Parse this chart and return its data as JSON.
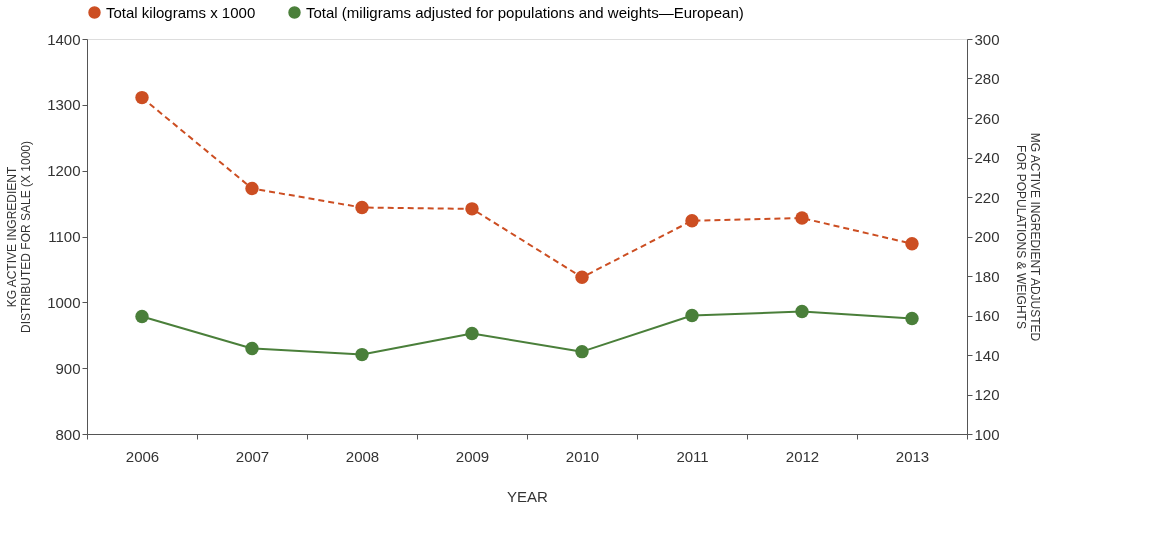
{
  "chart_data": {
    "type": "line",
    "categories": [
      "2006",
      "2007",
      "2008",
      "2009",
      "2010",
      "2011",
      "2012",
      "2013"
    ],
    "series": [
      {
        "name": "Total kilograms x 1000",
        "color": "#cc4e22",
        "line_style": "dashed",
        "values": [
          1311,
          1173,
          1144,
          1142,
          1038,
          1124,
          1128,
          1089
        ]
      },
      {
        "name": "Total (miligrams adjusted for populations and weights—European)",
        "color": "#4a7f3a",
        "line_style": "solid",
        "axis": "y2",
        "values": [
          159.5,
          143.3,
          140.2,
          150.9,
          141.7,
          160,
          162,
          158.5
        ]
      }
    ],
    "xlabel": "YEAR",
    "ylabel": "KG ACTIVE INGREDIENT\nDISTRIBUTED FOR SALE (X 1000)",
    "y2label": "MG ACTIVE INGREDIENT ADJUSTED\nFOR POPULATIONS & WEIGHTS",
    "ylim": [
      800,
      1400
    ],
    "yticks": [
      800,
      900,
      1000,
      1100,
      1200,
      1300,
      1400
    ],
    "y2lim": [
      100,
      300
    ],
    "y2ticks": [
      100,
      120,
      140,
      160,
      180,
      200,
      220,
      240,
      260,
      280,
      300
    ],
    "marker": "circle",
    "grid": false,
    "legend": "top"
  }
}
